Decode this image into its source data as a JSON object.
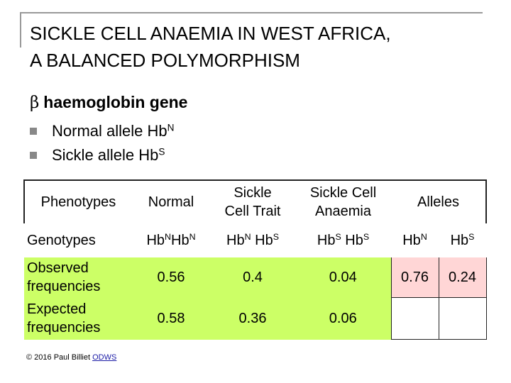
{
  "slide": {
    "title_line1": "SICKLE CELL ANAEMIA IN WEST AFRICA,",
    "title_line2": "A BALANCED POLYMORPHISM",
    "gene_symbol": "β",
    "gene_heading": "haemoglobin gene",
    "bullets": [
      {
        "base": "Normal allele Hb",
        "sup": "N"
      },
      {
        "base": "Sickle allele Hb",
        "sup": "S"
      }
    ]
  },
  "table": {
    "header": {
      "label": "Phenotypes",
      "normal": "Normal",
      "trait_line1": "Sickle",
      "trait_line2": "Cell Trait",
      "anaemia_line1": "Sickle Cell",
      "anaemia_line2": "Anaemia",
      "alleles": "Alleles"
    },
    "genotypes": {
      "label": "Genotypes",
      "hb": "Hb",
      "N": "N",
      "S": "S"
    },
    "observed": {
      "label_line1": "Observed",
      "label_line2": "frequencies",
      "normal": "0.56",
      "trait": "0.4",
      "anaemia": "0.04",
      "allele_n": "0.76",
      "allele_s": "0.24"
    },
    "expected": {
      "label_line1": "Expected",
      "label_line2": "frequencies",
      "normal": "0.58",
      "trait": "0.36",
      "anaemia": "0.06"
    }
  },
  "footer": {
    "copyright": "© 2016 Paul Billiet ",
    "link": "ODWS"
  },
  "colors": {
    "green_highlight": "#ccff66",
    "pink_highlight": "#ffd6d6"
  }
}
